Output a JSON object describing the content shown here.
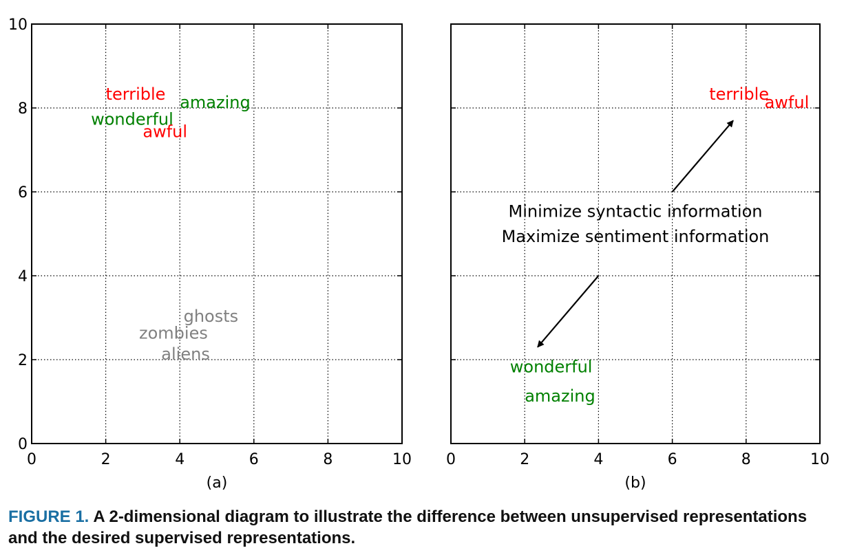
{
  "chart_data": [
    {
      "type": "scatter",
      "xlabel": "",
      "ylabel": "",
      "xlim": [
        0,
        10
      ],
      "ylim": [
        0,
        10
      ],
      "xticks": [
        0,
        2,
        4,
        6,
        8,
        10
      ],
      "yticks": [
        0,
        2,
        4,
        6,
        8,
        10
      ],
      "grid": true,
      "subfigure_label": "(a)",
      "points": [
        {
          "label": "terrible",
          "x": 2.0,
          "y": 8.2,
          "color": "#ff0000"
        },
        {
          "label": "amazing",
          "x": 4.0,
          "y": 8.0,
          "color": "#008000"
        },
        {
          "label": "wonderful",
          "x": 1.6,
          "y": 7.6,
          "color": "#008000"
        },
        {
          "label": "awful",
          "x": 3.0,
          "y": 7.3,
          "color": "#ff0000"
        },
        {
          "label": "ghosts",
          "x": 4.1,
          "y": 2.9,
          "color": "#808080"
        },
        {
          "label": "zombies",
          "x": 2.9,
          "y": 2.5,
          "color": "#808080"
        },
        {
          "label": "aliens",
          "x": 3.5,
          "y": 2.0,
          "color": "#808080"
        }
      ]
    },
    {
      "type": "scatter",
      "xlabel": "",
      "ylabel": "",
      "xlim": [
        0,
        10
      ],
      "ylim": [
        0,
        10
      ],
      "xticks": [
        0,
        2,
        4,
        6,
        8,
        10
      ],
      "grid": true,
      "subfigure_label": "(b)",
      "points": [
        {
          "label": "terrible",
          "x": 7.0,
          "y": 8.2,
          "color": "#ff0000"
        },
        {
          "label": "awful",
          "x": 8.5,
          "y": 8.0,
          "color": "#ff0000"
        },
        {
          "label": "wonderful",
          "x": 1.6,
          "y": 1.7,
          "color": "#008000"
        },
        {
          "label": "amazing",
          "x": 2.0,
          "y": 1.0,
          "color": "#008000"
        }
      ],
      "annotations": [
        {
          "text": "Minimize syntactic information",
          "x": 5.0,
          "y": 5.4
        },
        {
          "text": "Maximize sentiment information",
          "x": 5.0,
          "y": 4.8
        }
      ],
      "arrows": [
        {
          "from": [
            6.0,
            6.0
          ],
          "to": [
            7.65,
            7.7
          ]
        },
        {
          "from": [
            4.0,
            4.0
          ],
          "to": [
            2.35,
            2.3
          ]
        }
      ]
    }
  ],
  "caption": {
    "label": "FIGURE 1.",
    "text": "A 2-dimensional diagram to illustrate the difference between unsupervised representations and the desired supervised representations."
  }
}
